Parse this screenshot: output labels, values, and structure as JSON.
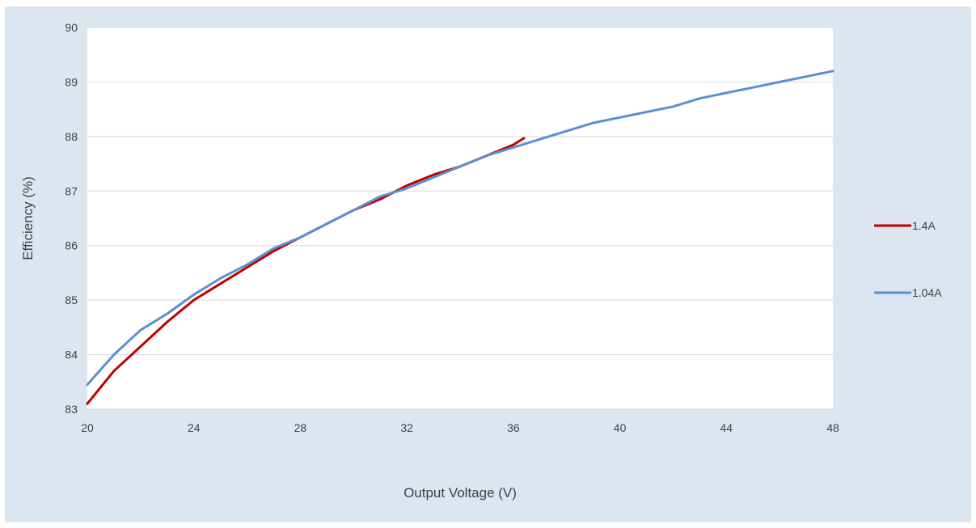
{
  "chart_data": {
    "type": "line",
    "title": "",
    "xlabel": "Output Voltage (V)",
    "ylabel": "Efficiency (%)",
    "xlim": [
      20,
      48
    ],
    "ylim": [
      83,
      90
    ],
    "x_ticks": [
      20,
      24,
      28,
      32,
      36,
      40,
      44,
      48
    ],
    "y_ticks": [
      83,
      84,
      85,
      86,
      87,
      88,
      89,
      90
    ],
    "grid": "horizontal",
    "legend_position": "right",
    "colors": {
      "background": "#dce6f1",
      "plot_area": "#ffffff",
      "gridline": "#d9d9d9"
    },
    "series": [
      {
        "name": "1.4A",
        "color": "#c00000",
        "x": [
          20,
          21,
          22,
          23,
          24,
          25,
          26,
          27,
          28,
          29,
          30,
          31,
          32,
          33,
          34,
          35,
          36,
          36.4
        ],
        "y": [
          83.1,
          83.7,
          84.15,
          84.6,
          85.0,
          85.3,
          85.6,
          85.9,
          86.15,
          86.4,
          86.65,
          86.85,
          87.1,
          87.3,
          87.45,
          87.65,
          87.85,
          87.97
        ]
      },
      {
        "name": "1.04A",
        "color": "#5b8fd0",
        "x": [
          20,
          21,
          22,
          23,
          24,
          25,
          26,
          27,
          28,
          29,
          30,
          31,
          32,
          33,
          34,
          35,
          36,
          37,
          38,
          39,
          40,
          41,
          42,
          43,
          44,
          45,
          46,
          47,
          48
        ],
        "y": [
          83.45,
          84.0,
          84.45,
          84.75,
          85.1,
          85.4,
          85.65,
          85.95,
          86.15,
          86.4,
          86.65,
          86.9,
          87.05,
          87.25,
          87.45,
          87.65,
          87.8,
          87.95,
          88.1,
          88.25,
          88.35,
          88.45,
          88.55,
          88.7,
          88.8,
          88.9,
          89.0,
          89.1,
          89.2
        ]
      }
    ]
  }
}
